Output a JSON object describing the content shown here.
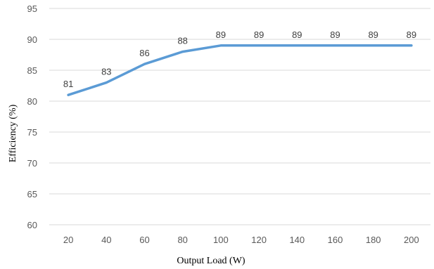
{
  "chart_data": {
    "type": "line",
    "title": "",
    "xlabel": "Output Load (W)",
    "ylabel": "Efficiency (%)",
    "categories": [
      "20",
      "40",
      "60",
      "80",
      "100",
      "120",
      "140",
      "160",
      "180",
      "200"
    ],
    "series": [
      {
        "values": [
          81,
          83,
          86,
          88,
          89,
          89,
          89,
          89,
          89,
          89
        ]
      }
    ],
    "data_labels": [
      "81",
      "83",
      "86",
      "88",
      "89",
      "89",
      "89",
      "89",
      "89",
      "89"
    ],
    "ylim": [
      60,
      95
    ],
    "yticks": [
      "60",
      "65",
      "70",
      "75",
      "80",
      "85",
      "90",
      "95"
    ],
    "grid": true,
    "legend": "none",
    "colors": {
      "line": "#5b9bd5",
      "grid": "#d9d9d9"
    }
  }
}
